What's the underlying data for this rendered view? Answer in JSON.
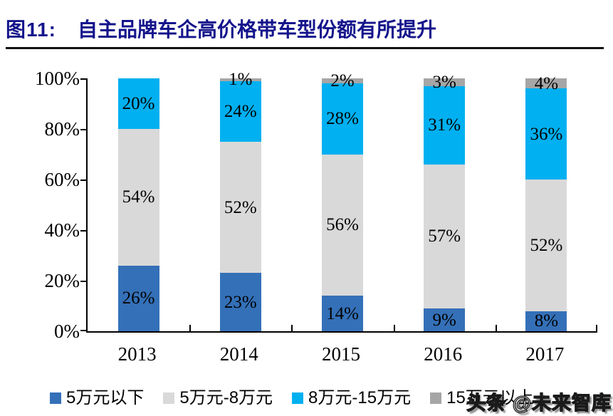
{
  "header": {
    "figure_label": "图11:",
    "title": "自主品牌车企高价格带车型份额有所提升"
  },
  "chart_data": {
    "type": "bar",
    "stacked": true,
    "title": "自主品牌车企高价格带车型份额有所提升",
    "categories": [
      "2013",
      "2014",
      "2015",
      "2016",
      "2017"
    ],
    "series": [
      {
        "name": "5万元以下",
        "color": "#3470B8",
        "values": [
          26,
          23,
          14,
          9,
          8
        ]
      },
      {
        "name": "5万元-8万元",
        "color": "#D9D9D9",
        "values": [
          54,
          52,
          56,
          57,
          52
        ]
      },
      {
        "name": "8万元-15万元",
        "color": "#00B0F0",
        "values": [
          20,
          24,
          28,
          31,
          36
        ]
      },
      {
        "name": "15万元以上",
        "color": "#A6A6A6",
        "values": [
          0,
          1,
          2,
          3,
          4
        ]
      }
    ],
    "y_tick_labels": [
      "0%",
      "20%",
      "40%",
      "60%",
      "80%",
      "100%"
    ],
    "ylim": [
      0,
      100
    ],
    "data_label_suffix": "%",
    "grid": false,
    "legend_position": "bottom"
  },
  "watermark": {
    "text": "头条 @未来智库"
  },
  "style": {
    "title_color": "#14148C",
    "axis_color": "#000000",
    "background": "#FFFFFF"
  }
}
